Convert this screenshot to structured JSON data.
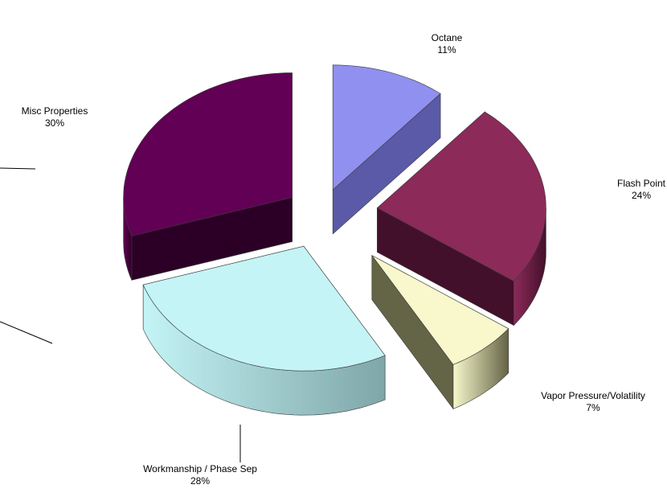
{
  "chart_data": {
    "type": "pie",
    "style": "3d-exploded",
    "title": "",
    "slices": [
      {
        "name": "Octane",
        "value": 11,
        "percent_label": "11%",
        "color": "#9090F0",
        "side_color": "#5A5AA8"
      },
      {
        "name": "Flash Point",
        "value": 24,
        "percent_label": "24%",
        "color": "#8C2A5A",
        "side_color": "#42102A"
      },
      {
        "name": "Vapor Pressure/Volatility",
        "value": 7,
        "percent_label": "7%",
        "color": "#F8F8CC",
        "side_color": "#646446"
      },
      {
        "name": "Workmanship / Phase Sep",
        "value": 28,
        "percent_label": "28%",
        "color": "#C4F4F6",
        "side_color": "#7FA6A8"
      },
      {
        "name": "Misc Properties",
        "value": 30,
        "percent_label": "30%",
        "color": "#620055",
        "side_color": "#2C0026"
      }
    ]
  }
}
